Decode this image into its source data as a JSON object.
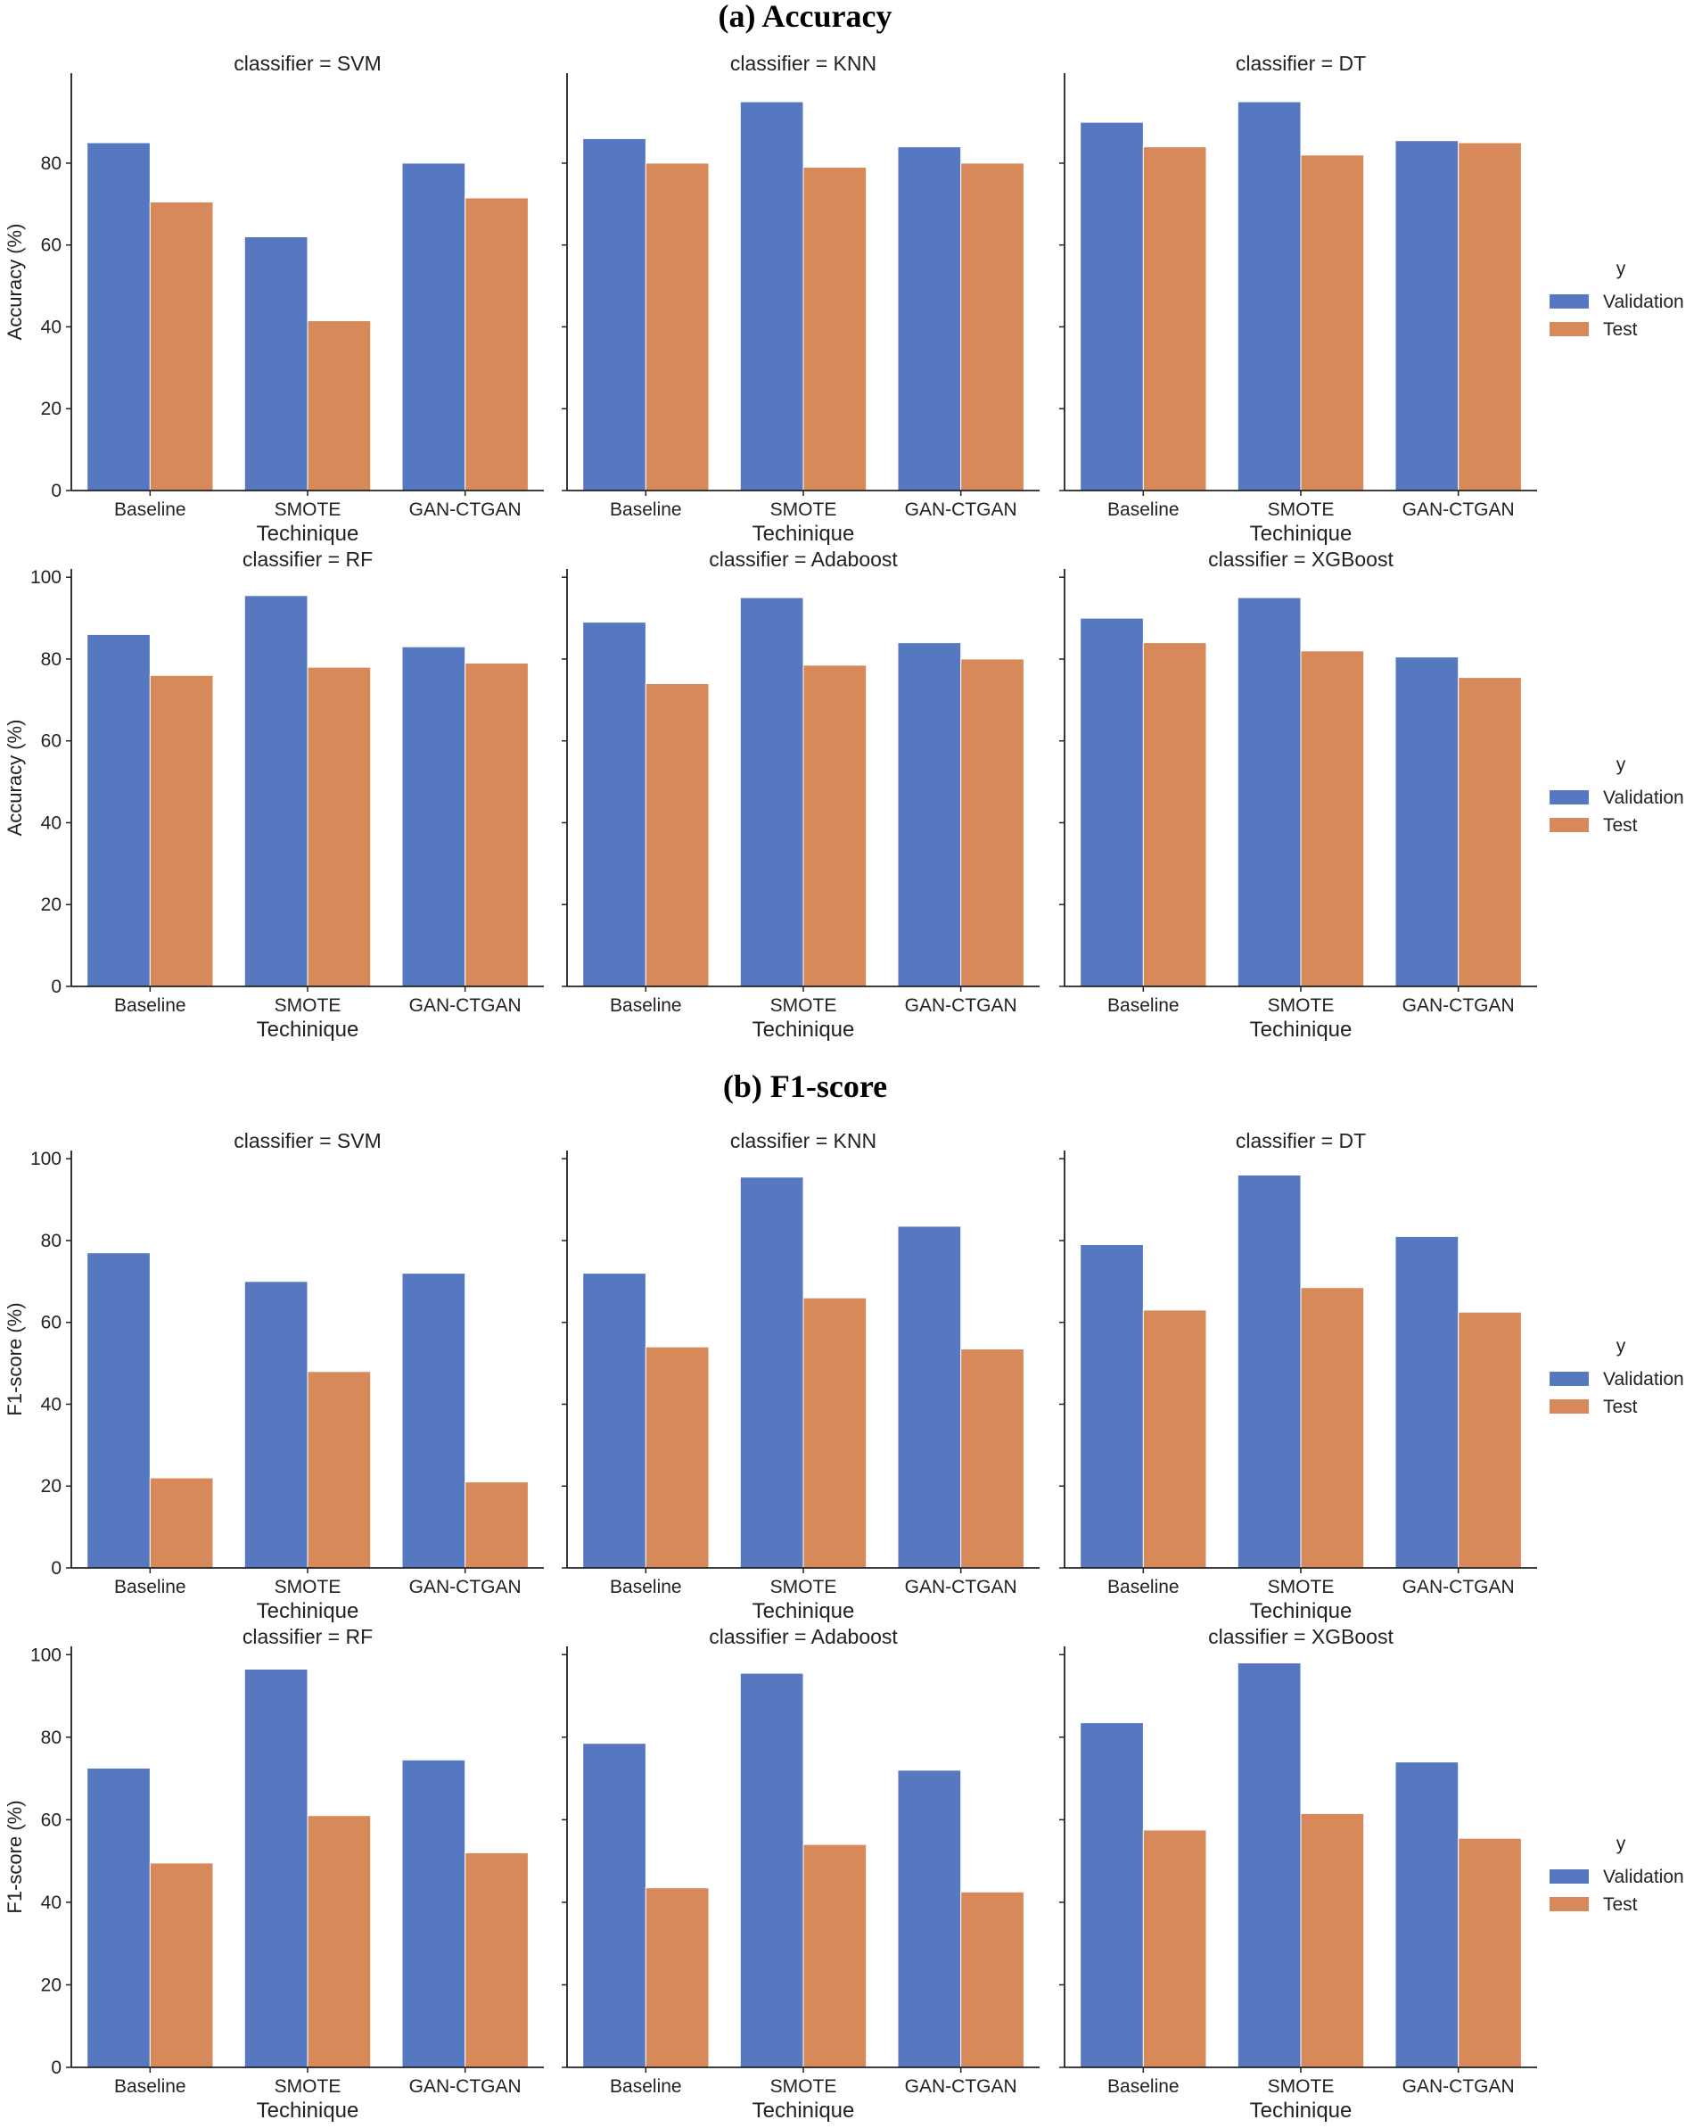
{
  "sections": [
    {
      "title": "(a) Accuracy"
    },
    {
      "title": "(b) F1-score"
    }
  ],
  "colors": {
    "validation": "#5678c1",
    "test": "#d8895a",
    "axis": "#222222"
  },
  "legend": {
    "title": "y",
    "items": [
      "Validation",
      "Test"
    ]
  },
  "chart_data": [
    {
      "type": "bar",
      "section": "(a) Accuracy",
      "title": "classifier = SVM",
      "categories": [
        "Baseline",
        "SMOTE",
        "GAN-CTGAN"
      ],
      "series": [
        {
          "name": "Validation",
          "values": [
            85,
            62,
            80
          ]
        },
        {
          "name": "Test",
          "values": [
            70.5,
            41.5,
            71.5
          ]
        }
      ],
      "xlabel": "Techinique",
      "ylabel": "Accuracy (%)",
      "ylim": [
        0,
        100
      ],
      "yticks": [
        0,
        20,
        40,
        60,
        80
      ],
      "legend": "right",
      "grid": false
    },
    {
      "type": "bar",
      "section": "(a) Accuracy",
      "title": "classifier = KNN",
      "categories": [
        "Baseline",
        "SMOTE",
        "GAN-CTGAN"
      ],
      "series": [
        {
          "name": "Validation",
          "values": [
            86,
            95,
            84
          ]
        },
        {
          "name": "Test",
          "values": [
            80,
            79,
            80
          ]
        }
      ],
      "xlabel": "Techinique",
      "ylabel": "",
      "ylim": [
        0,
        100
      ],
      "yticks": [
        0,
        20,
        40,
        60,
        80
      ],
      "legend": "right",
      "grid": false
    },
    {
      "type": "bar",
      "section": "(a) Accuracy",
      "title": "classifier = DT",
      "categories": [
        "Baseline",
        "SMOTE",
        "GAN-CTGAN"
      ],
      "series": [
        {
          "name": "Validation",
          "values": [
            90,
            95,
            85.5
          ]
        },
        {
          "name": "Test",
          "values": [
            84,
            82,
            85
          ]
        }
      ],
      "xlabel": "Techinique",
      "ylabel": "",
      "ylim": [
        0,
        100
      ],
      "yticks": [
        0,
        20,
        40,
        60,
        80
      ],
      "legend": "right",
      "grid": false
    },
    {
      "type": "bar",
      "section": "(a) Accuracy",
      "title": "classifier = RF",
      "categories": [
        "Baseline",
        "SMOTE",
        "GAN-CTGAN"
      ],
      "series": [
        {
          "name": "Validation",
          "values": [
            86,
            95.5,
            83
          ]
        },
        {
          "name": "Test",
          "values": [
            76,
            78,
            79
          ]
        }
      ],
      "xlabel": "Techinique",
      "ylabel": "Accuracy (%)",
      "ylim": [
        0,
        100
      ],
      "yticks": [
        0,
        20,
        40,
        60,
        80,
        100
      ],
      "legend": "right",
      "grid": false
    },
    {
      "type": "bar",
      "section": "(a) Accuracy",
      "title": "classifier = Adaboost",
      "categories": [
        "Baseline",
        "SMOTE",
        "GAN-CTGAN"
      ],
      "series": [
        {
          "name": "Validation",
          "values": [
            89,
            95,
            84
          ]
        },
        {
          "name": "Test",
          "values": [
            74,
            78.5,
            80
          ]
        }
      ],
      "xlabel": "Techinique",
      "ylabel": "",
      "ylim": [
        0,
        100
      ],
      "yticks": [
        0,
        20,
        40,
        60,
        80,
        100
      ],
      "legend": "right",
      "grid": false
    },
    {
      "type": "bar",
      "section": "(a) Accuracy",
      "title": "classifier = XGBoost",
      "categories": [
        "Baseline",
        "SMOTE",
        "GAN-CTGAN"
      ],
      "series": [
        {
          "name": "Validation",
          "values": [
            90,
            95,
            80.5
          ]
        },
        {
          "name": "Test",
          "values": [
            84,
            82,
            75.5
          ]
        }
      ],
      "xlabel": "Techinique",
      "ylabel": "",
      "ylim": [
        0,
        100
      ],
      "yticks": [
        0,
        20,
        40,
        60,
        80,
        100
      ],
      "legend": "right",
      "grid": false
    },
    {
      "type": "bar",
      "section": "(b) F1-score",
      "title": "classifier = SVM",
      "categories": [
        "Baseline",
        "SMOTE",
        "GAN-CTGAN"
      ],
      "series": [
        {
          "name": "Validation",
          "values": [
            77,
            70,
            72
          ]
        },
        {
          "name": "Test",
          "values": [
            22,
            48,
            21
          ]
        }
      ],
      "xlabel": "Techinique",
      "ylabel": "F1-score (%)",
      "ylim": [
        0,
        100
      ],
      "yticks": [
        0,
        20,
        40,
        60,
        80,
        100
      ],
      "legend": "right",
      "grid": false
    },
    {
      "type": "bar",
      "section": "(b) F1-score",
      "title": "classifier = KNN",
      "categories": [
        "Baseline",
        "SMOTE",
        "GAN-CTGAN"
      ],
      "series": [
        {
          "name": "Validation",
          "values": [
            72,
            95.5,
            83.5
          ]
        },
        {
          "name": "Test",
          "values": [
            54,
            66,
            53.5
          ]
        }
      ],
      "xlabel": "Techinique",
      "ylabel": "",
      "ylim": [
        0,
        100
      ],
      "yticks": [
        0,
        20,
        40,
        60,
        80,
        100
      ],
      "legend": "right",
      "grid": false
    },
    {
      "type": "bar",
      "section": "(b) F1-score",
      "title": "classifier = DT",
      "categories": [
        "Baseline",
        "SMOTE",
        "GAN-CTGAN"
      ],
      "series": [
        {
          "name": "Validation",
          "values": [
            79,
            96,
            81
          ]
        },
        {
          "name": "Test",
          "values": [
            63,
            68.5,
            62.5
          ]
        }
      ],
      "xlabel": "Techinique",
      "ylabel": "",
      "ylim": [
        0,
        100
      ],
      "yticks": [
        0,
        20,
        40,
        60,
        80,
        100
      ],
      "legend": "right",
      "grid": false
    },
    {
      "type": "bar",
      "section": "(b) F1-score",
      "title": "classifier = RF",
      "categories": [
        "Baseline",
        "SMOTE",
        "GAN-CTGAN"
      ],
      "series": [
        {
          "name": "Validation",
          "values": [
            72.5,
            96.5,
            74.5
          ]
        },
        {
          "name": "Test",
          "values": [
            49.5,
            61,
            52
          ]
        }
      ],
      "xlabel": "Techinique",
      "ylabel": "F1-score (%)",
      "ylim": [
        0,
        100
      ],
      "yticks": [
        0,
        20,
        40,
        60,
        80,
        100
      ],
      "legend": "right",
      "grid": false
    },
    {
      "type": "bar",
      "section": "(b) F1-score",
      "title": "classifier = Adaboost",
      "categories": [
        "Baseline",
        "SMOTE",
        "GAN-CTGAN"
      ],
      "series": [
        {
          "name": "Validation",
          "values": [
            78.5,
            95.5,
            72
          ]
        },
        {
          "name": "Test",
          "values": [
            43.5,
            54,
            42.5
          ]
        }
      ],
      "xlabel": "Techinique",
      "ylabel": "",
      "ylim": [
        0,
        100
      ],
      "yticks": [
        0,
        20,
        40,
        60,
        80,
        100
      ],
      "legend": "right",
      "grid": false
    },
    {
      "type": "bar",
      "section": "(b) F1-score",
      "title": "classifier = XGBoost",
      "categories": [
        "Baseline",
        "SMOTE",
        "GAN-CTGAN"
      ],
      "series": [
        {
          "name": "Validation",
          "values": [
            83.5,
            98,
            74
          ]
        },
        {
          "name": "Test",
          "values": [
            57.5,
            61.5,
            55.5
          ]
        }
      ],
      "xlabel": "Techinique",
      "ylabel": "",
      "ylim": [
        0,
        100
      ],
      "yticks": [
        0,
        20,
        40,
        60,
        80,
        100
      ],
      "legend": "right",
      "grid": false
    }
  ]
}
